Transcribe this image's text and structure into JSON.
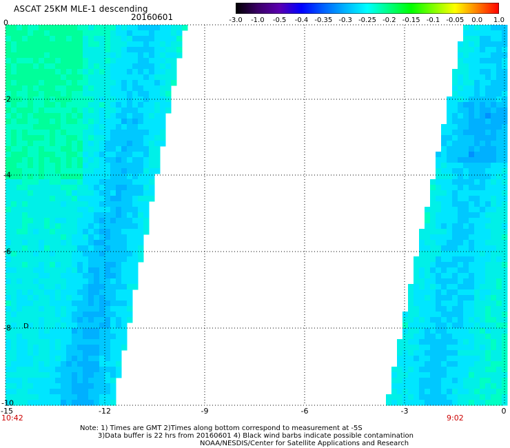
{
  "header": {
    "title": "ASCAT 25KM MLE-1 descending",
    "date": "20160601"
  },
  "colorbar": {
    "ticks": [
      "-3.0",
      "-1.0",
      "-0.5",
      "-0.4",
      "-0.35",
      "-0.3",
      "-0.25",
      "-0.2",
      "-0.15",
      "-0.1",
      "-0.05",
      "0.0",
      "1.0"
    ],
    "colors": [
      "#000000",
      "#3a0066",
      "#5a00b0",
      "#0000ff",
      "#0060ff",
      "#00b4ff",
      "#00ffff",
      "#00ff80",
      "#00ff00",
      "#80ff00",
      "#ffff00",
      "#ff8000",
      "#ff0000"
    ]
  },
  "axes": {
    "x_ticks": [
      "-15",
      "-12",
      "-9",
      "-6",
      "-3",
      "0"
    ],
    "y_ticks": [
      "0",
      "-2",
      "-4",
      "-6",
      "-8",
      "-10"
    ],
    "x_range": [
      -15,
      0
    ],
    "y_range": [
      -10,
      0
    ]
  },
  "times": {
    "left": "10:42",
    "right": "9:02"
  },
  "notes": {
    "line1": "Note: 1) Times are GMT 2)Times along bottom correspond to measurement at -5S",
    "line2": "3)Data buffer is 22 hrs from 20160601 4) Black wind barbs indicate possible contamination",
    "line3": "NOAA/NESDIS/Center for Satellite Applications and Research"
  },
  "marker": "D"
}
